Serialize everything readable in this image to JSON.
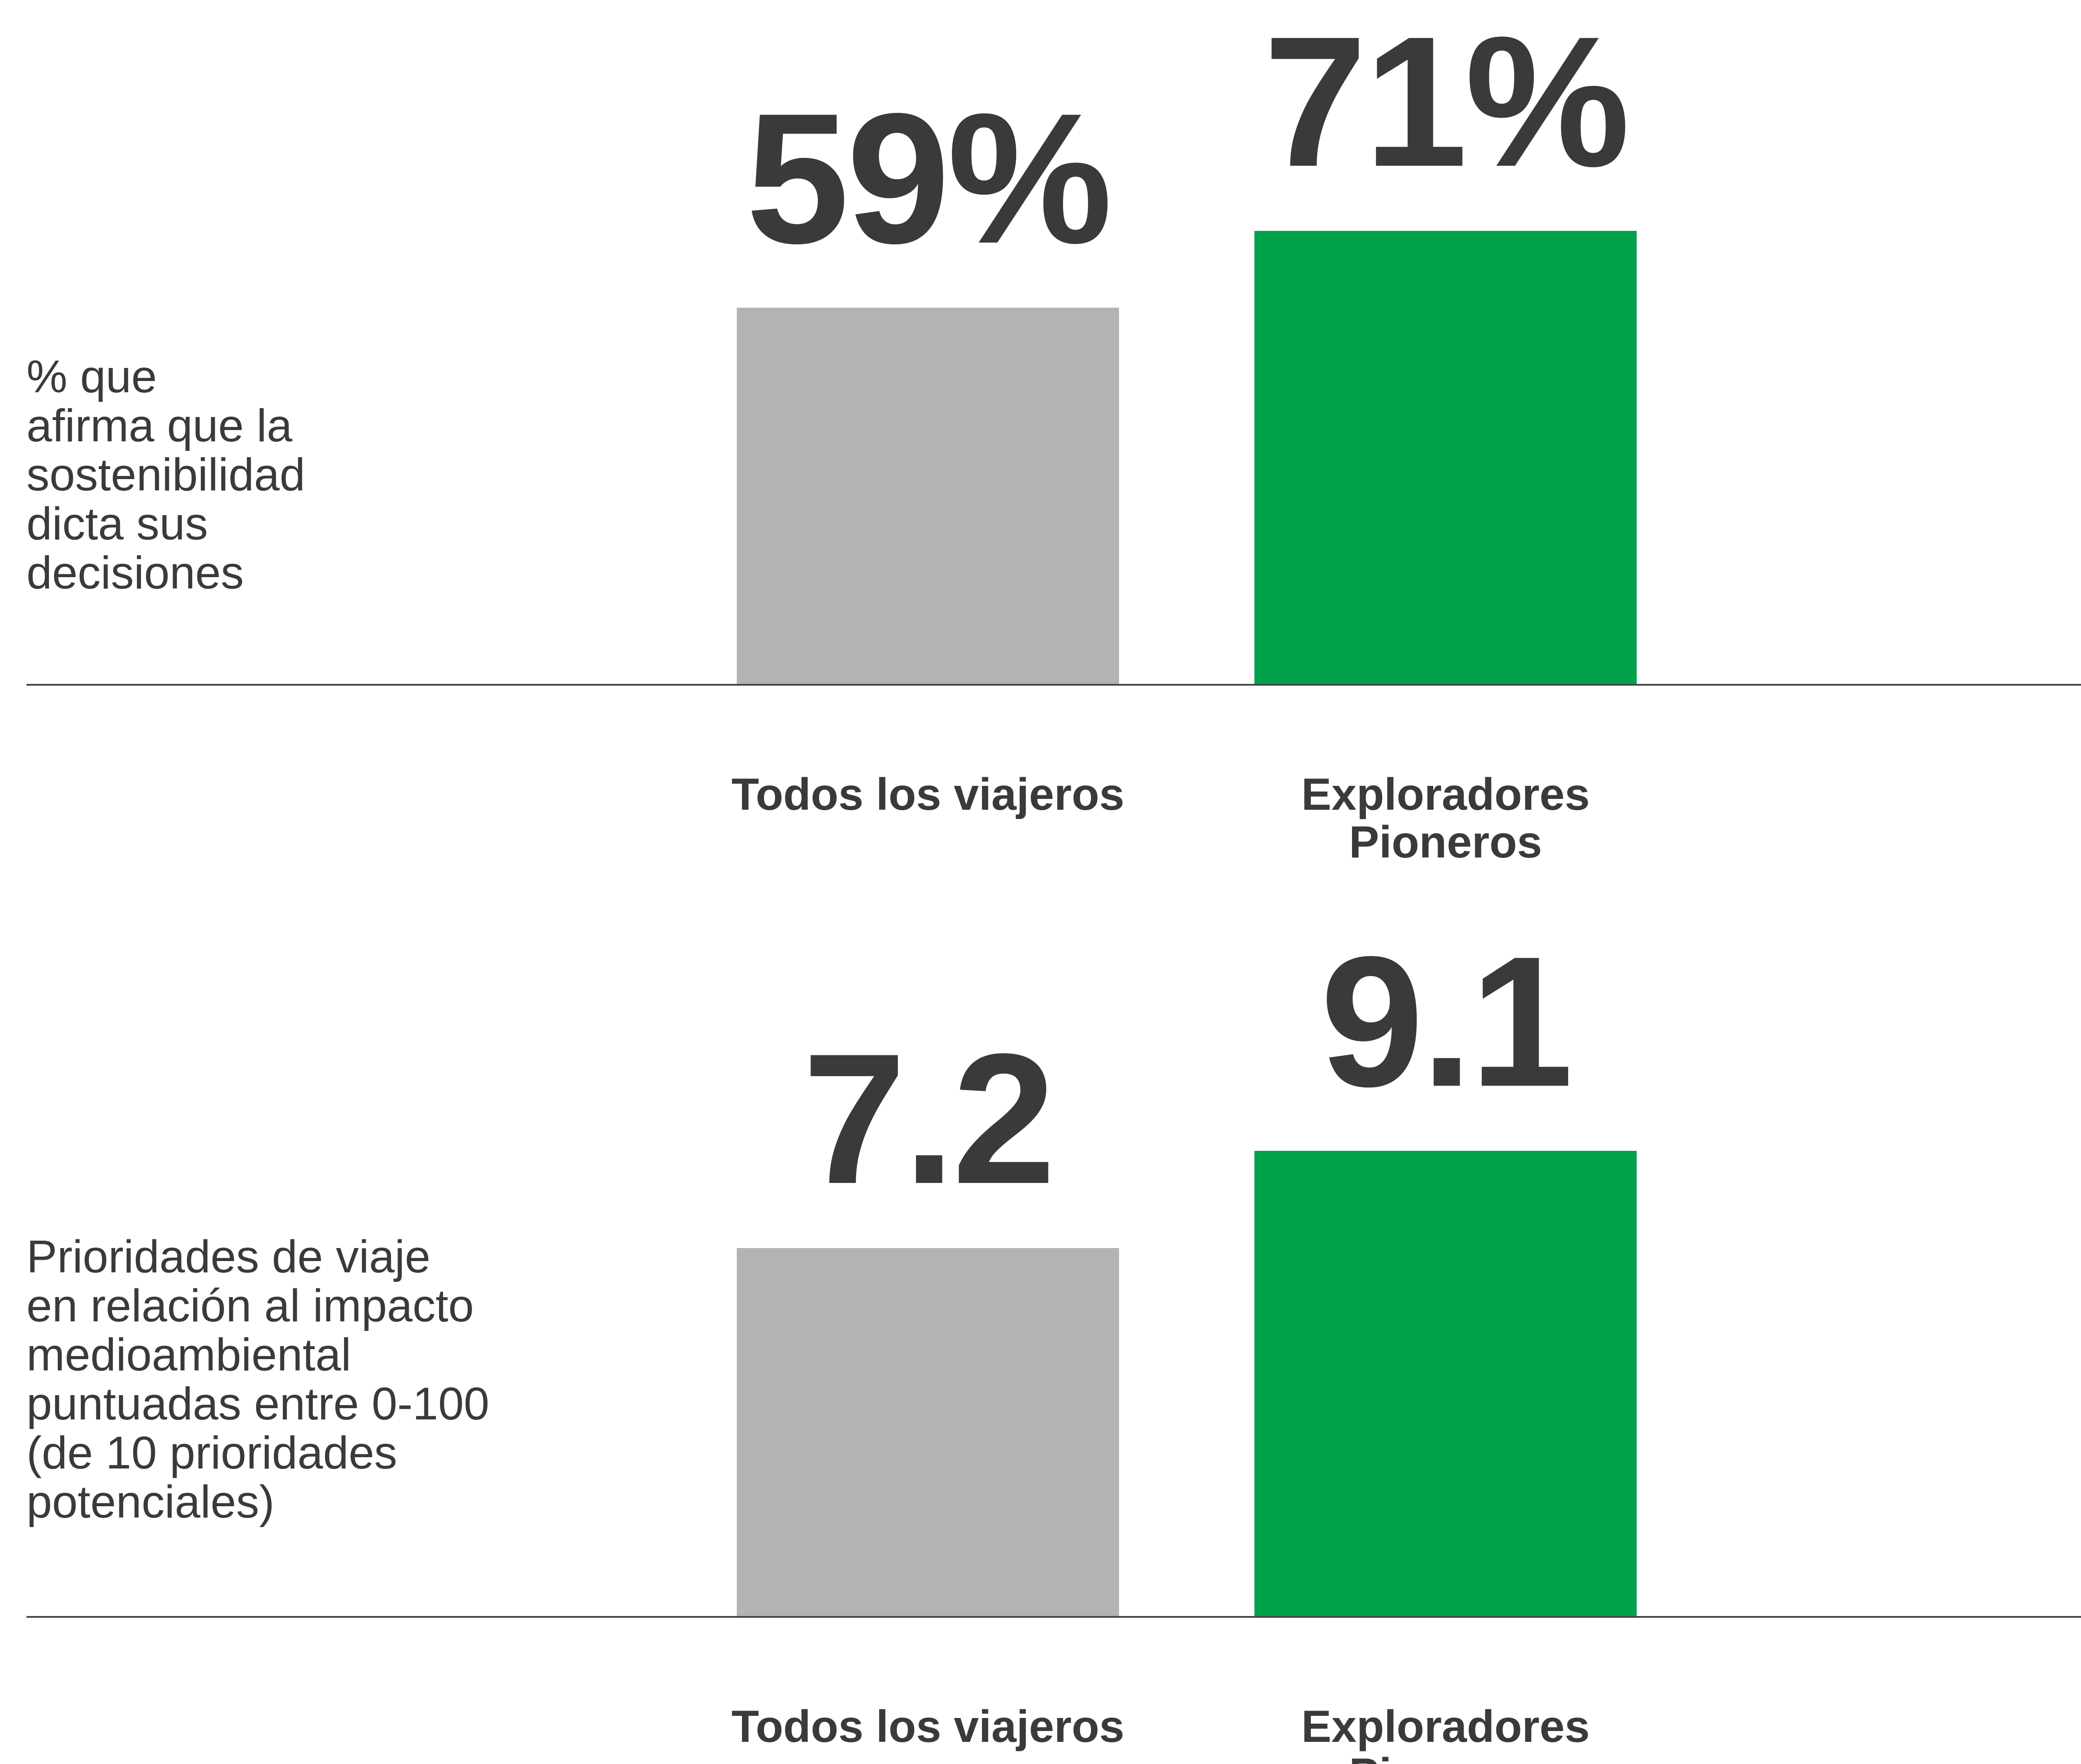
{
  "chart_data": [
    {
      "type": "bar",
      "y_label": "% que\nafirma que la\nsostenibilidad\ndicta sus\ndecisiones",
      "categories": [
        "Todos los viajeros",
        "Exploradores Pioneros"
      ],
      "values": [
        59,
        71
      ],
      "value_labels": [
        "59%",
        "71%"
      ],
      "colors": [
        "#b3b3b3",
        "#00a14b"
      ]
    },
    {
      "type": "bar",
      "y_label": "Prioridades de viaje\nen relación al impacto\nmedioambiental\npuntuadas entre 0-100\n(de 10 prioridades\npotenciales)",
      "categories": [
        "Todos los viajeros",
        "Exploradores Pioneros"
      ],
      "values": [
        7.2,
        9.1
      ],
      "colors": [
        "#b3b3b3",
        "#00a14b"
      ]
    }
  ]
}
